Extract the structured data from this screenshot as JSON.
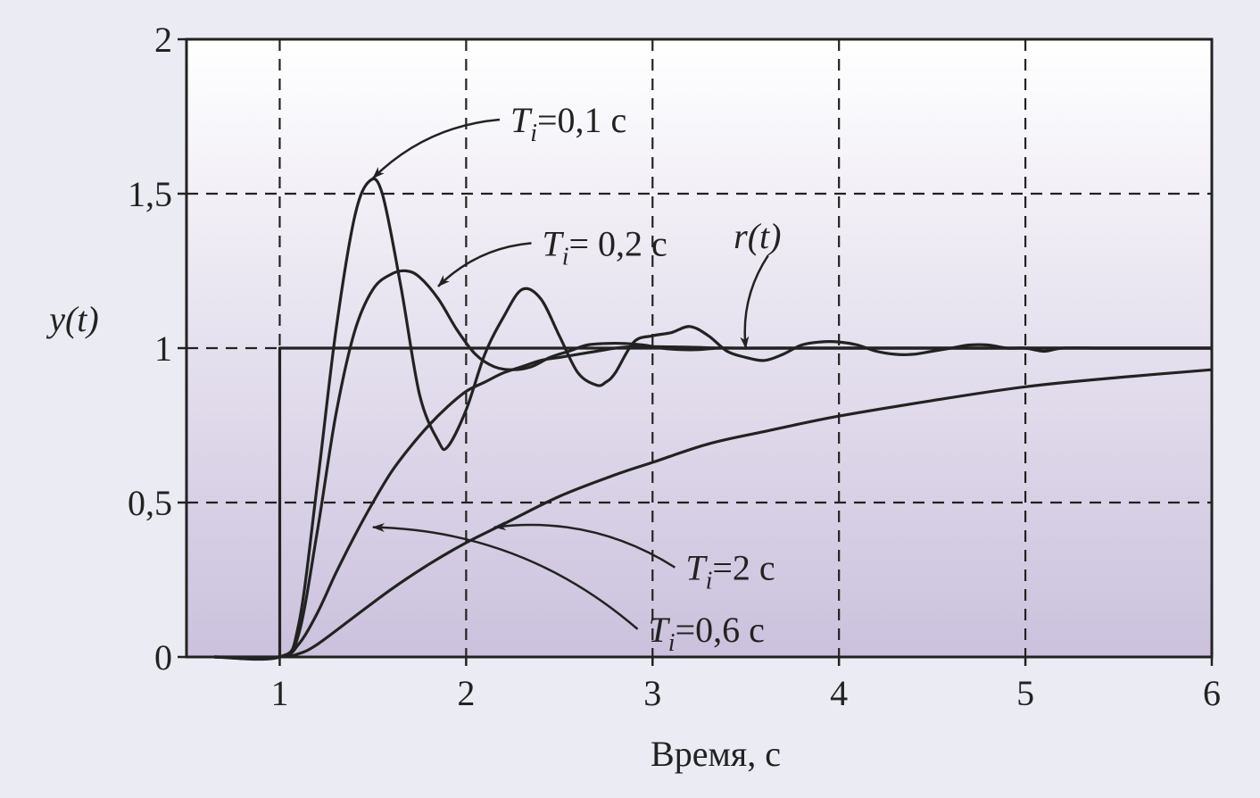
{
  "chart_data": {
    "type": "line",
    "xlabel": "Время, с",
    "ylabel": "y(t)",
    "xlim": [
      0.5,
      6
    ],
    "ylim": [
      0,
      2
    ],
    "x_ticks": [
      "1",
      "2",
      "3",
      "4",
      "5",
      "6"
    ],
    "y_ticks": [
      "0",
      "0,5",
      "1",
      "1,5",
      "2"
    ],
    "grid": true,
    "colors": {
      "line": "#222222",
      "grid": "#222222",
      "plot_bg_top": "#ffffff",
      "plot_bg_bottom": "#cbc1dd",
      "page_bg": "#ebebf3"
    },
    "series": [
      {
        "name": "r(t)",
        "x": [
          0.65,
          1.0,
          1.0,
          6.0
        ],
        "y": [
          0,
          0,
          1,
          1
        ]
      },
      {
        "name": "Ti=0,1 c",
        "x": [
          0.65,
          1.0,
          1.1,
          1.2,
          1.3,
          1.4,
          1.48,
          1.55,
          1.65,
          1.75,
          1.85,
          1.9,
          2.0,
          2.1,
          2.2,
          2.3,
          2.4,
          2.5,
          2.6,
          2.7,
          2.75,
          2.8,
          2.9,
          3.0,
          3.1,
          3.2,
          3.3,
          3.4,
          3.5,
          3.6,
          3.7,
          3.8,
          3.9,
          4.0,
          4.1,
          4.2,
          4.3,
          4.4,
          4.5,
          4.6,
          4.7,
          4.8,
          4.9,
          5.0,
          5.1,
          5.2,
          5.4,
          5.6,
          5.8,
          6.0
        ],
        "y": [
          0,
          0,
          0.1,
          0.55,
          1.05,
          1.42,
          1.54,
          1.5,
          1.2,
          0.85,
          0.7,
          0.68,
          0.8,
          0.98,
          1.1,
          1.19,
          1.16,
          1.04,
          0.92,
          0.88,
          0.89,
          0.92,
          1.02,
          1.04,
          1.05,
          1.07,
          1.04,
          0.99,
          0.97,
          0.96,
          0.98,
          1.01,
          1.02,
          1.02,
          1.01,
          0.99,
          0.98,
          0.98,
          0.99,
          1.0,
          1.01,
          1.01,
          1.0,
          1.0,
          0.99,
          1.0,
          1.0,
          1.0,
          1.0,
          1.0
        ]
      },
      {
        "name": "Ti=0,2 c",
        "x": [
          0.65,
          1.0,
          1.1,
          1.2,
          1.3,
          1.4,
          1.5,
          1.6,
          1.68,
          1.75,
          1.85,
          1.95,
          2.05,
          2.15,
          2.25,
          2.35,
          2.45,
          2.55,
          2.65,
          2.75,
          2.85,
          2.95,
          3.05,
          3.15,
          3.25,
          3.35,
          3.5,
          3.7,
          4.0,
          4.5,
          5.0,
          6.0
        ],
        "y": [
          0,
          0,
          0.07,
          0.4,
          0.78,
          1.05,
          1.19,
          1.24,
          1.25,
          1.23,
          1.16,
          1.06,
          0.98,
          0.94,
          0.93,
          0.94,
          0.97,
          0.99,
          1.01,
          1.015,
          1.015,
          1.01,
          1.0,
          0.995,
          0.995,
          1.0,
          1.0,
          1.0,
          1.0,
          1.0,
          1.0,
          1.0
        ]
      },
      {
        "name": "Ti=0,6 c",
        "x": [
          0.65,
          1.0,
          1.1,
          1.2,
          1.3,
          1.4,
          1.5,
          1.6,
          1.7,
          1.8,
          1.9,
          2.0,
          2.1,
          2.2,
          2.3,
          2.4,
          2.5,
          2.6,
          2.7,
          2.8,
          2.9,
          3.0,
          3.2,
          3.4,
          3.6,
          4.0,
          4.5,
          5.0,
          6.0
        ],
        "y": [
          0,
          0,
          0.04,
          0.14,
          0.27,
          0.39,
          0.5,
          0.6,
          0.68,
          0.75,
          0.81,
          0.86,
          0.89,
          0.92,
          0.94,
          0.96,
          0.97,
          0.98,
          0.99,
          1.0,
          1.005,
          1.005,
          1.003,
          1.0,
          1.0,
          1.0,
          1.0,
          1.0,
          1.0
        ]
      },
      {
        "name": "Ti=2 c",
        "x": [
          0.65,
          1.0,
          1.1,
          1.2,
          1.4,
          1.6,
          1.8,
          2.0,
          2.2,
          2.5,
          2.8,
          3.0,
          3.3,
          3.6,
          4.0,
          4.5,
          5.0,
          5.5,
          6.0
        ],
        "y": [
          0,
          0,
          0.01,
          0.04,
          0.13,
          0.22,
          0.3,
          0.37,
          0.43,
          0.52,
          0.59,
          0.63,
          0.69,
          0.73,
          0.78,
          0.83,
          0.875,
          0.905,
          0.93
        ]
      }
    ],
    "annotations": [
      {
        "label": "r(t)",
        "x": 3.62,
        "y": 1.3,
        "arrow_to": [
          3.5,
          1.0
        ]
      },
      {
        "label_var": "T",
        "label_sub": "i",
        "label_value": "=0,1 c",
        "x": 2.18,
        "y": 1.74,
        "arrow_to": [
          1.5,
          1.55
        ]
      },
      {
        "label_var": "T",
        "label_sub": "i",
        "label_value": "=  0,2 c",
        "x": 2.35,
        "y": 1.34,
        "arrow_to": [
          1.85,
          1.2
        ]
      },
      {
        "label_var": "T",
        "label_sub": "i",
        "label_value": "=2 c",
        "x": 3.12,
        "y": 0.29,
        "arrow_to": [
          2.15,
          0.42
        ]
      },
      {
        "label_var": "T",
        "label_sub": "i",
        "label_value": "=0,6 c",
        "x": 2.92,
        "y": 0.09,
        "arrow_to": [
          1.5,
          0.42
        ]
      }
    ]
  }
}
